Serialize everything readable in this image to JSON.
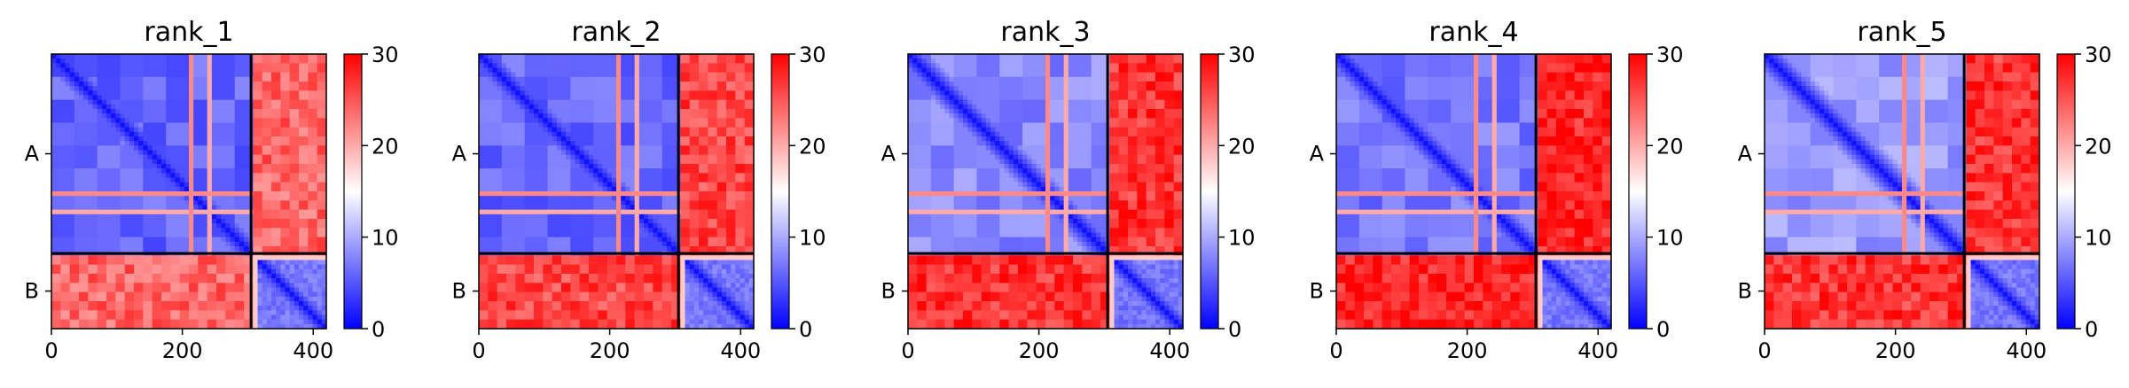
{
  "chart_data": [
    {
      "type": "heatmap",
      "title": "rank_1",
      "xticks": [
        0,
        200,
        400
      ],
      "xlim": [
        0,
        420
      ],
      "chain_labels": [
        "A",
        "B"
      ],
      "chain_boundaries": [
        0,
        305,
        420
      ],
      "colorbar": {
        "min": 0,
        "max": 30,
        "ticks": [
          0,
          10,
          20,
          30
        ],
        "colormap": [
          "#0000ff",
          "#ffffff",
          "#ff0000"
        ]
      },
      "mean_values": {
        "intra_A": 6,
        "inter_AB": 24,
        "intra_B": 7
      }
    },
    {
      "type": "heatmap",
      "title": "rank_2",
      "xticks": [
        0,
        200,
        400
      ],
      "xlim": [
        0,
        420
      ],
      "chain_labels": [
        "A",
        "B"
      ],
      "chain_boundaries": [
        0,
        305,
        420
      ],
      "colorbar": {
        "min": 0,
        "max": 30,
        "ticks": [
          0,
          10,
          20,
          30
        ],
        "colormap": [
          "#0000ff",
          "#ffffff",
          "#ff0000"
        ]
      },
      "mean_values": {
        "intra_A": 6,
        "inter_AB": 26,
        "intra_B": 7
      }
    },
    {
      "type": "heatmap",
      "title": "rank_3",
      "xticks": [
        0,
        200,
        400
      ],
      "xlim": [
        0,
        420
      ],
      "chain_labels": [
        "A",
        "B"
      ],
      "chain_boundaries": [
        0,
        305,
        420
      ],
      "colorbar": {
        "min": 0,
        "max": 30,
        "ticks": [
          0,
          10,
          20,
          30
        ],
        "colormap": [
          "#0000ff",
          "#ffffff",
          "#ff0000"
        ]
      },
      "mean_values": {
        "intra_A": 8,
        "inter_AB": 27,
        "intra_B": 7
      }
    },
    {
      "type": "heatmap",
      "title": "rank_4",
      "xticks": [
        0,
        200,
        400
      ],
      "xlim": [
        0,
        420
      ],
      "chain_labels": [
        "A",
        "B"
      ],
      "chain_boundaries": [
        0,
        305,
        420
      ],
      "colorbar": {
        "min": 0,
        "max": 30,
        "ticks": [
          0,
          10,
          20,
          30
        ],
        "colormap": [
          "#0000ff",
          "#ffffff",
          "#ff0000"
        ]
      },
      "mean_values": {
        "intra_A": 7,
        "inter_AB": 28,
        "intra_B": 7
      }
    },
    {
      "type": "heatmap",
      "title": "rank_5",
      "xticks": [
        0,
        200,
        400
      ],
      "xlim": [
        0,
        420
      ],
      "chain_labels": [
        "A",
        "B"
      ],
      "chain_boundaries": [
        0,
        305,
        420
      ],
      "colorbar": {
        "min": 0,
        "max": 30,
        "ticks": [
          0,
          10,
          20,
          30
        ],
        "colormap": [
          "#0000ff",
          "#ffffff",
          "#ff0000"
        ]
      },
      "mean_values": {
        "intra_A": 9,
        "inter_AB": 27,
        "intra_B": 7
      }
    }
  ]
}
